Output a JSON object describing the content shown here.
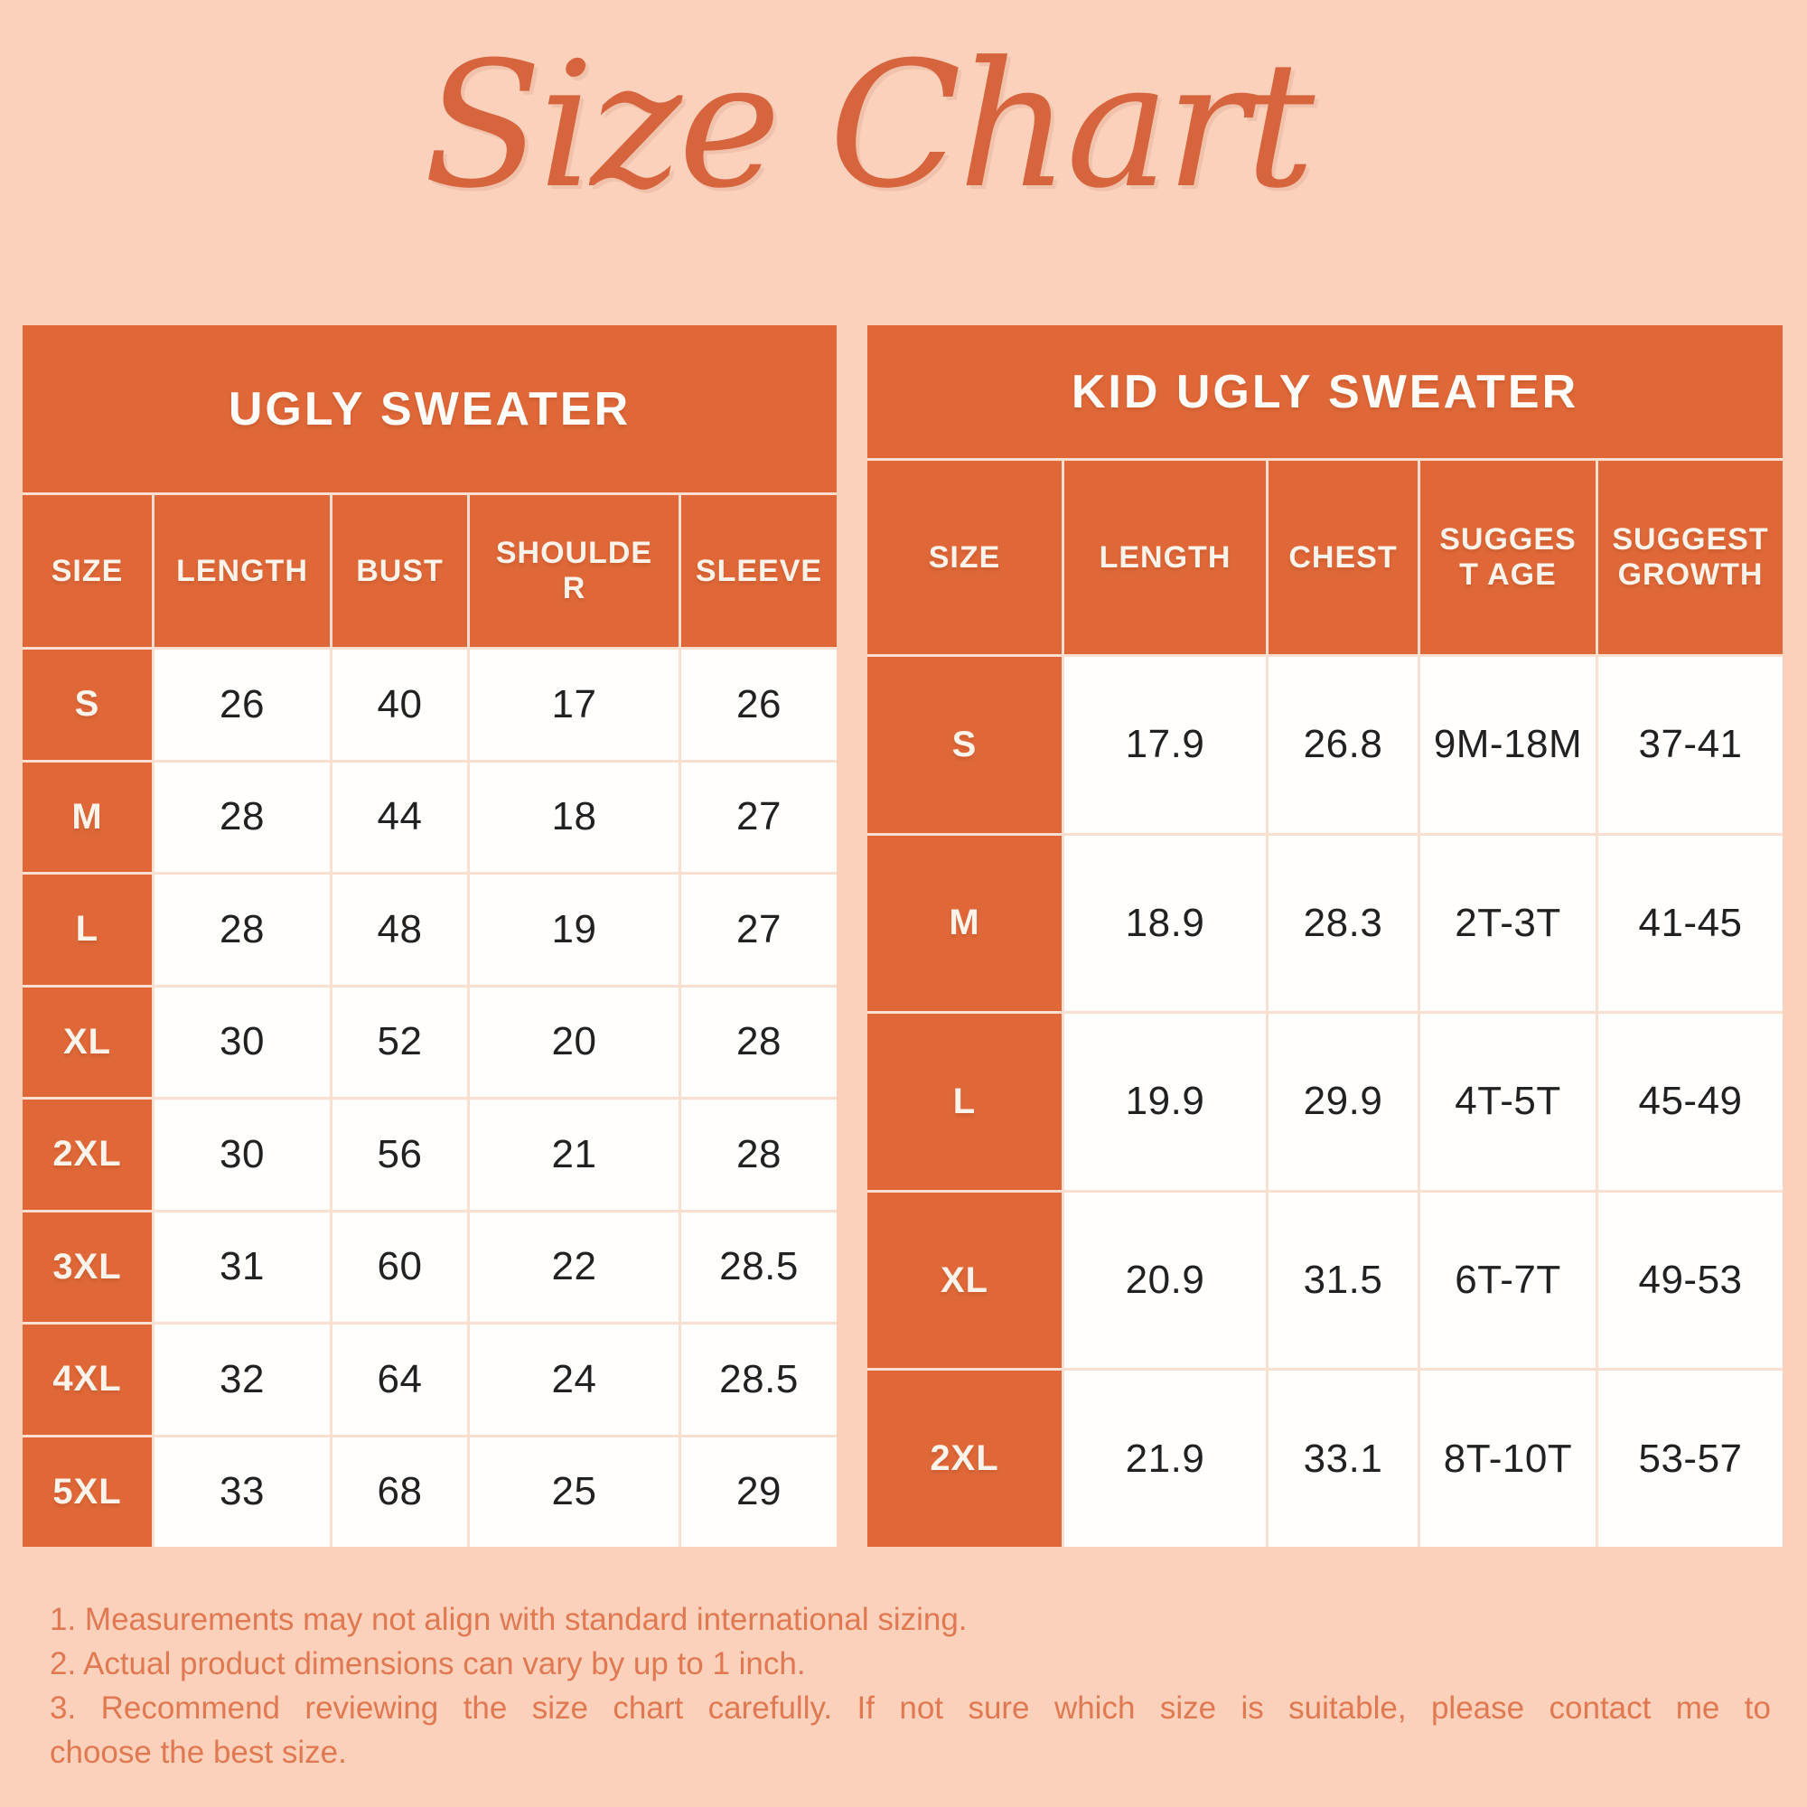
{
  "page": {
    "title": "Size Chart",
    "background_color": "#FBD1BC",
    "accent_color": "#E06838",
    "title_color": "#D6643C",
    "notes_color": "#E07951"
  },
  "tables": {
    "adult": {
      "title": "UGLY SWEATER",
      "columns": [
        "SIZE",
        "LENGTH",
        "BUST",
        "SHOULDE\nR",
        "SLEEVE"
      ],
      "rows": [
        {
          "size": "S",
          "values": [
            "26",
            "40",
            "17",
            "26"
          ]
        },
        {
          "size": "M",
          "values": [
            "28",
            "44",
            "18",
            "27"
          ]
        },
        {
          "size": "L",
          "values": [
            "28",
            "48",
            "19",
            "27"
          ]
        },
        {
          "size": "XL",
          "values": [
            "30",
            "52",
            "20",
            "28"
          ]
        },
        {
          "size": "2XL",
          "values": [
            "30",
            "56",
            "21",
            "28"
          ]
        },
        {
          "size": "3XL",
          "values": [
            "31",
            "60",
            "22",
            "28.5"
          ]
        },
        {
          "size": "4XL",
          "values": [
            "32",
            "64",
            "24",
            "28.5"
          ]
        },
        {
          "size": "5XL",
          "values": [
            "33",
            "68",
            "25",
            "29"
          ]
        }
      ]
    },
    "kid": {
      "title": "KID UGLY SWEATER",
      "columns": [
        "SIZE",
        "LENGTH",
        "CHEST",
        "SUGGES\nT AGE",
        "SUGGEST\nGROWTH"
      ],
      "rows": [
        {
          "size": "S",
          "values": [
            "17.9",
            "26.8",
            "9M-18M",
            "37-41"
          ]
        },
        {
          "size": "M",
          "values": [
            "18.9",
            "28.3",
            "2T-3T",
            "41-45"
          ]
        },
        {
          "size": "L",
          "values": [
            "19.9",
            "29.9",
            "4T-5T",
            "45-49"
          ]
        },
        {
          "size": "XL",
          "values": [
            "20.9",
            "31.5",
            "6T-7T",
            "49-53"
          ]
        },
        {
          "size": "2XL",
          "values": [
            "21.9",
            "33.1",
            "8T-10T",
            "53-57"
          ]
        }
      ]
    }
  },
  "notes": {
    "line1": "1. Measurements may not align with standard international sizing.",
    "line2": "2. Actual product dimensions can vary by up to 1 inch.",
    "line3": "3. Recommend reviewing the size chart carefully. If not sure which size is suitable, please contact me to",
    "line4": "choose the best size."
  }
}
